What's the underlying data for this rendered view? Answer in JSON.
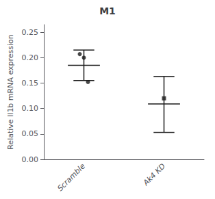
{
  "chart_data": {
    "type": "errorbar",
    "title": "M1",
    "ylabel": "Relative Il1b mRNA expression",
    "categories": [
      "Scramble",
      "Ak4 KD"
    ],
    "values": [
      0.185,
      0.109
    ],
    "error_upper": [
      0.215,
      0.163
    ],
    "error_lower": [
      0.155,
      0.053
    ],
    "points": [
      {
        "category": "Scramble",
        "values": [
          0.207,
          0.2,
          0.152
        ],
        "marker": "circle"
      },
      {
        "category": "Ak4 KD",
        "values": [
          0.12
        ],
        "marker": "square"
      }
    ],
    "color": "#1a1a1a",
    "ylim": [
      0.0,
      0.265
    ],
    "yticks": [
      {
        "value": 0.0,
        "label": "0.00"
      },
      {
        "value": 0.05,
        "label": "0.05"
      },
      {
        "value": 0.1,
        "label": "0.10"
      },
      {
        "value": 0.15,
        "label": "0.15"
      },
      {
        "value": 0.2,
        "label": "0.20"
      },
      {
        "value": 0.25,
        "label": "0.25"
      }
    ],
    "grid": false
  }
}
